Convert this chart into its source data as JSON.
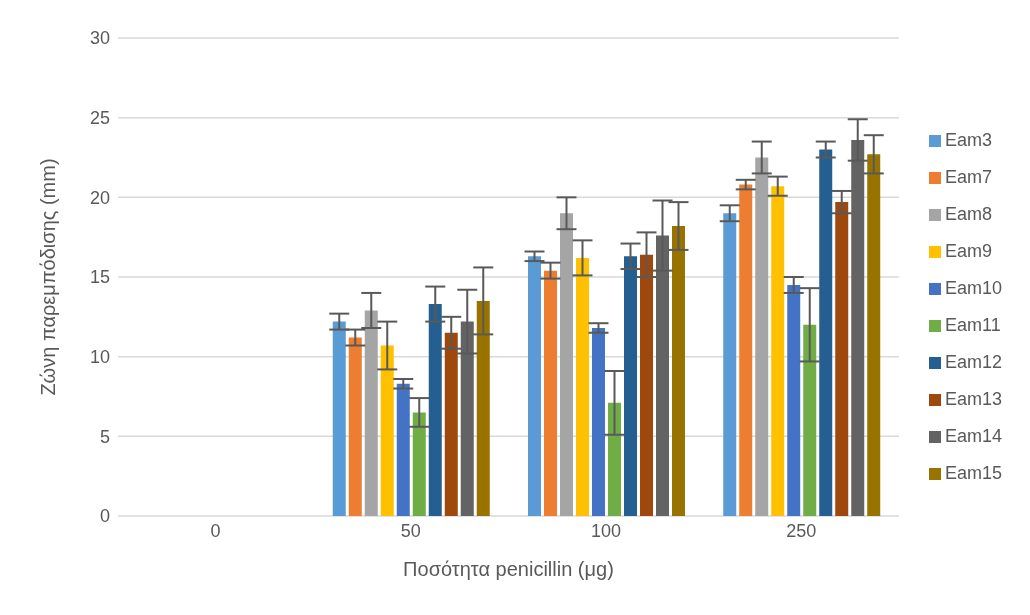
{
  "chart_data": {
    "type": "bar",
    "xlabel": "Ποσότητα penicillin (μg)",
    "ylabel": "Ζώνη παρεμπόδισης (mm)",
    "categories": [
      "0",
      "50",
      "100",
      "250"
    ],
    "series": [
      {
        "name": "Eam3",
        "color": "#5b9bd5",
        "values": [
          0,
          12.2,
          16.3,
          19.0
        ],
        "errors": [
          null,
          0.5,
          0.3,
          0.5
        ]
      },
      {
        "name": "Eam7",
        "color": "#ed7d31",
        "values": [
          0,
          11.2,
          15.4,
          20.8
        ],
        "errors": [
          null,
          0.5,
          0.5,
          0.3
        ]
      },
      {
        "name": "Eam8",
        "color": "#a5a5a5",
        "values": [
          0,
          12.9,
          19.0,
          22.5
        ],
        "errors": [
          null,
          1.1,
          1.0,
          1.0
        ]
      },
      {
        "name": "Eam9",
        "color": "#ffc000",
        "values": [
          0,
          10.7,
          16.2,
          20.7
        ],
        "errors": [
          null,
          1.5,
          1.1,
          0.6
        ]
      },
      {
        "name": "Eam10",
        "color": "#4472c4",
        "values": [
          0,
          8.3,
          11.8,
          14.5
        ],
        "errors": [
          null,
          0.3,
          0.3,
          0.5
        ]
      },
      {
        "name": "Eam11",
        "color": "#70ad47",
        "values": [
          0,
          6.5,
          7.1,
          12.0
        ],
        "errors": [
          null,
          0.9,
          2.0,
          2.3
        ]
      },
      {
        "name": "Eam12",
        "color": "#255e91",
        "values": [
          0,
          13.3,
          16.3,
          23.0
        ],
        "errors": [
          null,
          1.1,
          0.8,
          0.5
        ]
      },
      {
        "name": "Eam13",
        "color": "#9e480e",
        "values": [
          0,
          11.5,
          16.4,
          19.7
        ],
        "errors": [
          null,
          1.0,
          1.4,
          0.7
        ]
      },
      {
        "name": "Eam14",
        "color": "#636363",
        "values": [
          0,
          12.2,
          17.6,
          23.6
        ],
        "errors": [
          null,
          2.0,
          2.2,
          1.3
        ]
      },
      {
        "name": "Eam15",
        "color": "#997300",
        "values": [
          0,
          13.5,
          18.2,
          22.7
        ],
        "errors": [
          null,
          2.1,
          1.5,
          1.2
        ]
      }
    ],
    "ylim": [
      0,
      30
    ],
    "yticks": [
      0,
      5,
      10,
      15,
      20,
      25,
      30
    ],
    "grid": "y",
    "legend": "right"
  }
}
